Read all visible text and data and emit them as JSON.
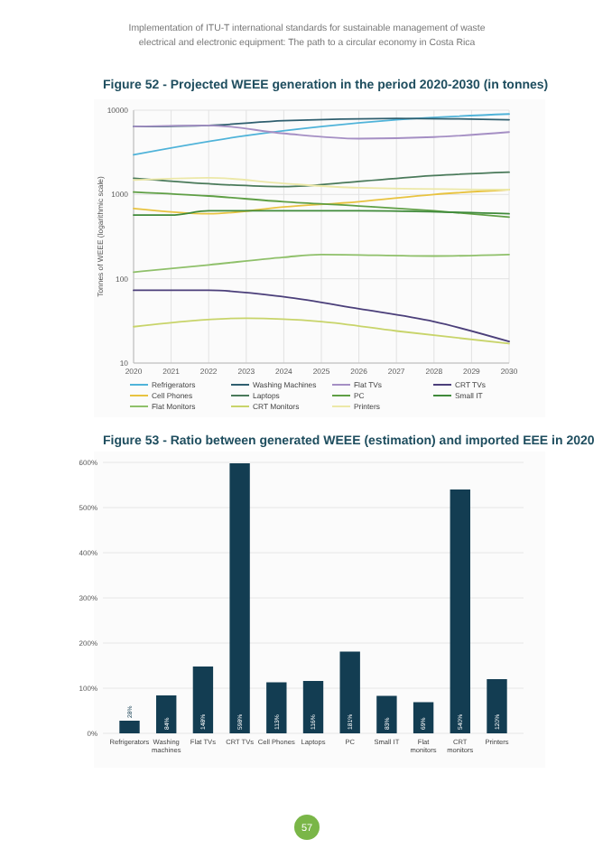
{
  "chart_data": [
    {
      "type": "line",
      "title": "Figure 52 - Projected WEEE generation in the period 2020-2030 (in tonnes)",
      "ylabel": "Tonnes of WEEE (logarithmic scale)",
      "annotations": [
        "Implementation of ITU-T international standards for sustainable management of waste",
        "electrical and electronic equipment: The path to a circular economy in Costa Rica"
      ],
      "log": true,
      "grid": true,
      "legend": "bottom",
      "xlim": [
        2020,
        2030
      ],
      "xticks": [
        2020,
        2021,
        2022,
        2023,
        2024,
        2025,
        2026,
        2027,
        2028,
        2029,
        2030
      ],
      "ylim": [
        10,
        10000
      ],
      "yticks": [
        10,
        100,
        1000,
        10000
      ],
      "series": [
        {
          "name": "Refrigerators",
          "color": "#4fb3d9",
          "x": [
            2020,
            2023,
            2025,
            2027,
            2030
          ],
          "values": [
            2960,
            5000,
            6400,
            7700,
            9000
          ]
        },
        {
          "name": "Washing Machines",
          "color": "#2f5f6f",
          "x": [
            2020,
            2022,
            2024,
            2027,
            2030
          ],
          "values": [
            6400,
            6600,
            7500,
            8000,
            7700
          ]
        },
        {
          "name": "Flat TVs",
          "color": "#a58fc4",
          "x": [
            2020,
            2022,
            2024,
            2026,
            2028,
            2030
          ],
          "values": [
            6400,
            6600,
            5300,
            4600,
            4800,
            5500
          ]
        },
        {
          "name": "CRT TVs",
          "color": "#4b3f7a",
          "x": [
            2020,
            2022,
            2024,
            2026,
            2028,
            2030
          ],
          "values": [
            73,
            73,
            61,
            44,
            31,
            18
          ]
        },
        {
          "name": "Cell Phones",
          "color": "#e8c340",
          "x": [
            2020,
            2022,
            2024,
            2026,
            2028,
            2030
          ],
          "values": [
            680,
            590,
            710,
            820,
            1000,
            1140
          ]
        },
        {
          "name": "Laptops",
          "color": "#4a7a5a",
          "x": [
            2020,
            2022,
            2024,
            2026,
            2028,
            2030
          ],
          "values": [
            1560,
            1340,
            1240,
            1430,
            1680,
            1840
          ]
        },
        {
          "name": "PC",
          "color": "#5f9f45",
          "x": [
            2020,
            2022,
            2024,
            2026,
            2028,
            2030
          ],
          "values": [
            1070,
            960,
            820,
            730,
            640,
            540
          ]
        },
        {
          "name": "Small IT",
          "color": "#3f8a3a",
          "x": [
            2020,
            2021,
            2022,
            2026,
            2030
          ],
          "values": [
            570,
            570,
            640,
            640,
            590
          ]
        },
        {
          "name": "Flat Monitors",
          "color": "#8fc06a",
          "x": [
            2020,
            2022,
            2024,
            2025,
            2028,
            2030
          ],
          "values": [
            120,
            146,
            180,
            194,
            186,
            194
          ]
        },
        {
          "name": "CRT Monitors",
          "color": "#c8d46a",
          "x": [
            2020,
            2023,
            2025,
            2027,
            2030
          ],
          "values": [
            27,
            34,
            31,
            24,
            17
          ]
        },
        {
          "name": "Printers",
          "color": "#ece8a8",
          "x": [
            2020,
            2022,
            2024,
            2026,
            2030
          ],
          "values": [
            1480,
            1580,
            1350,
            1200,
            1140
          ]
        }
      ]
    },
    {
      "type": "bar",
      "title": "Figure 53 - Ratio between generated WEEE (estimation) and imported EEE in 2020",
      "annotations": [
        "57"
      ],
      "grid": "y",
      "color": "#133d52",
      "ylim": [
        0,
        600
      ],
      "yticks": [
        {
          "value": 0,
          "label": "0%"
        },
        {
          "value": 100,
          "label": "100%"
        },
        {
          "value": 200,
          "label": "200%"
        },
        {
          "value": 300,
          "label": "300%"
        },
        {
          "value": 400,
          "label": "400%"
        },
        {
          "value": 500,
          "label": "500%"
        },
        {
          "value": 600,
          "label": "600%"
        }
      ],
      "categories": [
        "Refrigerators",
        "Washing machines",
        "Flat TVs",
        "CRT TVs",
        "Cell Phones",
        "Laptops",
        "PC",
        "Small IT",
        "Flat monitors",
        "CRT monitors",
        "Printers"
      ],
      "values": [
        28,
        84,
        148,
        598,
        113,
        116,
        181,
        83,
        69,
        540,
        120
      ],
      "value_labels": [
        "28%",
        "84%",
        "148%",
        "598%",
        "113%",
        "116%",
        "181%",
        "83%",
        "69%",
        "540%",
        "120%"
      ]
    }
  ]
}
